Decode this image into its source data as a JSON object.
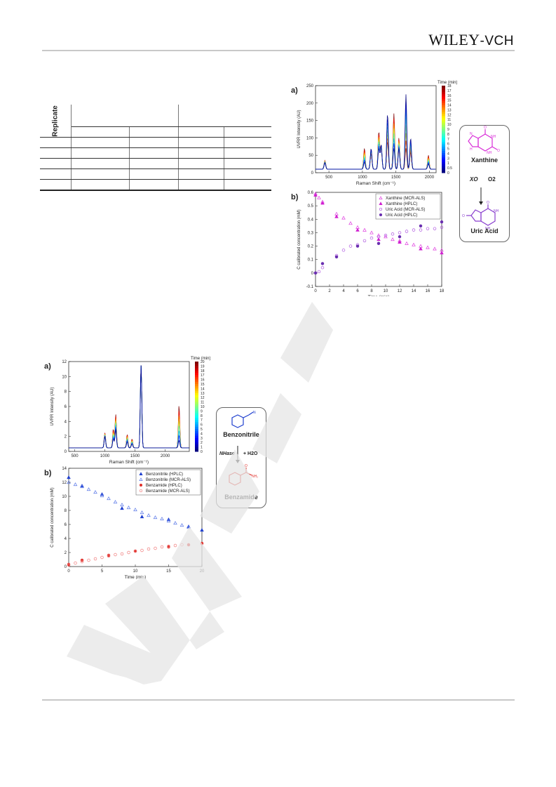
{
  "header": {
    "publisher": "WILEY",
    "publisher_suffix": "-VCH"
  },
  "table": {
    "replicate_label": "Replicate",
    "rows": 5,
    "columns": 4
  },
  "top_scheme": {
    "substrate": "Xanthine",
    "enzyme": "XO",
    "cosubstrate": "O2",
    "product": "Uric Acid",
    "substrate_color": "#d92ed8",
    "product_color": "#8a3fcf"
  },
  "bottom_scheme": {
    "substrate": "Benzonitrile",
    "enzyme": "NHase",
    "cosubstrate": "+ H2O",
    "product": "Benzamide",
    "substrate_color": "#1f3fcf",
    "product_color": "#e0322d"
  },
  "chart_data": [
    {
      "panel": "a)",
      "type": "line",
      "xlabel": "Raman Shift (cm⁻¹)",
      "ylabel": "UVRR Intensity (AU)",
      "xlim": [
        300,
        2100
      ],
      "ylim": [
        0,
        250
      ],
      "xticks": [
        500,
        1000,
        1500,
        2000
      ],
      "yticks": [
        0,
        50,
        100,
        150,
        200,
        250
      ],
      "colorbar_title": "Time (min)",
      "colorbar_ticks": [
        "18",
        "17",
        "16",
        "15",
        "14",
        "13",
        "12",
        "11",
        "10",
        "9",
        "8",
        "7",
        "6",
        "5",
        "4",
        "3",
        "1",
        "0.5",
        "0"
      ],
      "peaks": [
        {
          "x": 440,
          "values": [
            25,
            18
          ]
        },
        {
          "x": 1030,
          "values": [
            60,
            20
          ]
        },
        {
          "x": 1130,
          "values": [
            45,
            60
          ]
        },
        {
          "x": 1245,
          "values": [
            108,
            60
          ]
        },
        {
          "x": 1280,
          "values": [
            60,
            70
          ]
        },
        {
          "x": 1375,
          "values": [
            80,
            160
          ]
        },
        {
          "x": 1470,
          "values": [
            160,
            60
          ]
        },
        {
          "x": 1545,
          "values": [
            90,
            60
          ]
        },
        {
          "x": 1650,
          "values": [
            60,
            215
          ]
        },
        {
          "x": 1720,
          "values": [
            50,
            90
          ]
        },
        {
          "x": 1985,
          "values": [
            40,
            15
          ]
        }
      ]
    },
    {
      "panel": "b)",
      "type": "scatter",
      "xlabel": "Time (min)",
      "ylabel": "C calibrated concentration (mM)",
      "xlim": [
        0,
        18
      ],
      "ylim": [
        -0.1,
        0.6
      ],
      "xticks": [
        0,
        2,
        4,
        6,
        8,
        10,
        12,
        14,
        16,
        18
      ],
      "yticks": [
        -0.1,
        0,
        0.1,
        0.2,
        0.3,
        0.4,
        0.5,
        0.6
      ],
      "legend_position": "top-right",
      "series": [
        {
          "name": "Xanthine (MCR-ALS)",
          "color": "#e040e0",
          "marker": "triangle-open",
          "x": [
            0,
            0.5,
            1,
            3,
            4,
            5,
            6,
            7,
            8,
            9,
            10,
            11,
            12,
            13,
            14,
            15,
            16,
            17,
            18
          ],
          "y": [
            0.59,
            0.56,
            0.53,
            0.44,
            0.41,
            0.37,
            0.34,
            0.32,
            0.3,
            0.28,
            0.27,
            0.25,
            0.24,
            0.22,
            0.21,
            0.2,
            0.19,
            0.18,
            0.17
          ]
        },
        {
          "name": "Xanthine (HPLC)",
          "color": "#d020d0",
          "marker": "triangle",
          "x": [
            0,
            1,
            3,
            6,
            9,
            12,
            15,
            18
          ],
          "y": [
            0.58,
            0.52,
            0.42,
            0.32,
            0.25,
            0.23,
            0.18,
            0.15
          ]
        },
        {
          "name": "Uric Acid (MCR-ALS)",
          "color": "#b05ae0",
          "marker": "circle-open",
          "x": [
            0,
            0.5,
            1,
            3,
            4,
            5,
            6,
            7,
            8,
            9,
            10,
            11,
            12,
            13,
            14,
            15,
            16,
            17,
            18
          ],
          "y": [
            0.0,
            0.01,
            0.04,
            0.13,
            0.17,
            0.2,
            0.21,
            0.24,
            0.26,
            0.27,
            0.28,
            0.29,
            0.3,
            0.31,
            0.32,
            0.32,
            0.33,
            0.33,
            0.34
          ]
        },
        {
          "name": "Uric Acid (HPLC)",
          "color": "#6a2fb0",
          "marker": "circle",
          "x": [
            0,
            1,
            3,
            6,
            9,
            12,
            15,
            18
          ],
          "y": [
            0.0,
            0.07,
            0.12,
            0.2,
            0.22,
            0.27,
            0.35,
            0.38
          ]
        }
      ]
    },
    {
      "panel": "a)",
      "type": "line",
      "xlabel": "Raman Shift (cm⁻¹)",
      "ylabel": "UVRR Intensity (AU)",
      "xlim": [
        400,
        2400
      ],
      "ylim": [
        0,
        12
      ],
      "xticks": [
        500,
        1000,
        1500,
        2000
      ],
      "yticks": [
        0,
        2,
        4,
        6,
        8,
        10,
        12
      ],
      "colorbar_title": "Time (min)",
      "colorbar_ticks": [
        "20",
        "19",
        "18",
        "17",
        "16",
        "15",
        "14",
        "13",
        "12",
        "11",
        "10",
        "9",
        "8",
        "7",
        "6",
        "5",
        "4",
        "3",
        "2",
        "1",
        "0"
      ],
      "peaks": [
        {
          "x": 1000,
          "values": [
            2.0,
            1.5
          ]
        },
        {
          "x": 1140,
          "values": [
            2.5,
            1.2
          ]
        },
        {
          "x": 1180,
          "values": [
            4.5,
            2.5
          ]
        },
        {
          "x": 1370,
          "values": [
            1.8,
            0.8
          ]
        },
        {
          "x": 1450,
          "values": [
            1.2,
            0.5
          ]
        },
        {
          "x": 1600,
          "values": [
            11.0,
            11.0
          ]
        },
        {
          "x": 2230,
          "values": [
            5.7,
            1.0
          ]
        }
      ]
    },
    {
      "panel": "b)",
      "type": "scatter",
      "xlabel": "Time (min)",
      "ylabel": "C calibrated concentration (mM)",
      "xlim": [
        0,
        20
      ],
      "ylim": [
        0,
        14
      ],
      "xticks": [
        0,
        5,
        10,
        15,
        20
      ],
      "yticks": [
        0,
        2,
        4,
        6,
        8,
        10,
        12,
        14
      ],
      "legend_position": "top-right",
      "series": [
        {
          "name": "Benzonitrile (HPLC)",
          "color": "#1f3fcf",
          "marker": "triangle",
          "x": [
            0,
            2,
            5,
            8,
            11,
            15,
            18,
            20
          ],
          "y": [
            12.7,
            11.5,
            10.3,
            8.3,
            7.1,
            6.7,
            5.7,
            5.2
          ]
        },
        {
          "name": "Benzonitrile (MCR-ALS)",
          "color": "#5a78e8",
          "marker": "triangle-open",
          "x": [
            0,
            1,
            2,
            3,
            4,
            5,
            6,
            7,
            8,
            9,
            10,
            11,
            12,
            13,
            14,
            15,
            16,
            17,
            18
          ],
          "y": [
            12.0,
            11.7,
            11.4,
            11.0,
            10.6,
            10.1,
            9.7,
            9.2,
            8.8,
            8.4,
            8.1,
            7.7,
            7.3,
            7.0,
            6.8,
            6.5,
            6.2,
            5.9,
            5.6
          ]
        },
        {
          "name": "Benzamide (HPLC)",
          "color": "#e0322d",
          "marker": "circle",
          "x": [
            0,
            2,
            6,
            10,
            15,
            18,
            20
          ],
          "y": [
            0.3,
            0.9,
            1.6,
            2.2,
            2.8,
            3.1,
            3.3
          ]
        },
        {
          "name": "Benzamide (MCR-ALS)",
          "color": "#f08080",
          "marker": "circle-open",
          "x": [
            0,
            1,
            2,
            3,
            4,
            5,
            6,
            7,
            8,
            9,
            10,
            11,
            12,
            13,
            14,
            15,
            16,
            17
          ],
          "y": [
            0.2,
            0.5,
            0.7,
            0.9,
            1.1,
            1.3,
            1.5,
            1.7,
            1.8,
            2.0,
            2.2,
            2.3,
            2.5,
            2.6,
            2.8,
            2.9,
            3.0,
            3.1
          ]
        }
      ]
    }
  ]
}
